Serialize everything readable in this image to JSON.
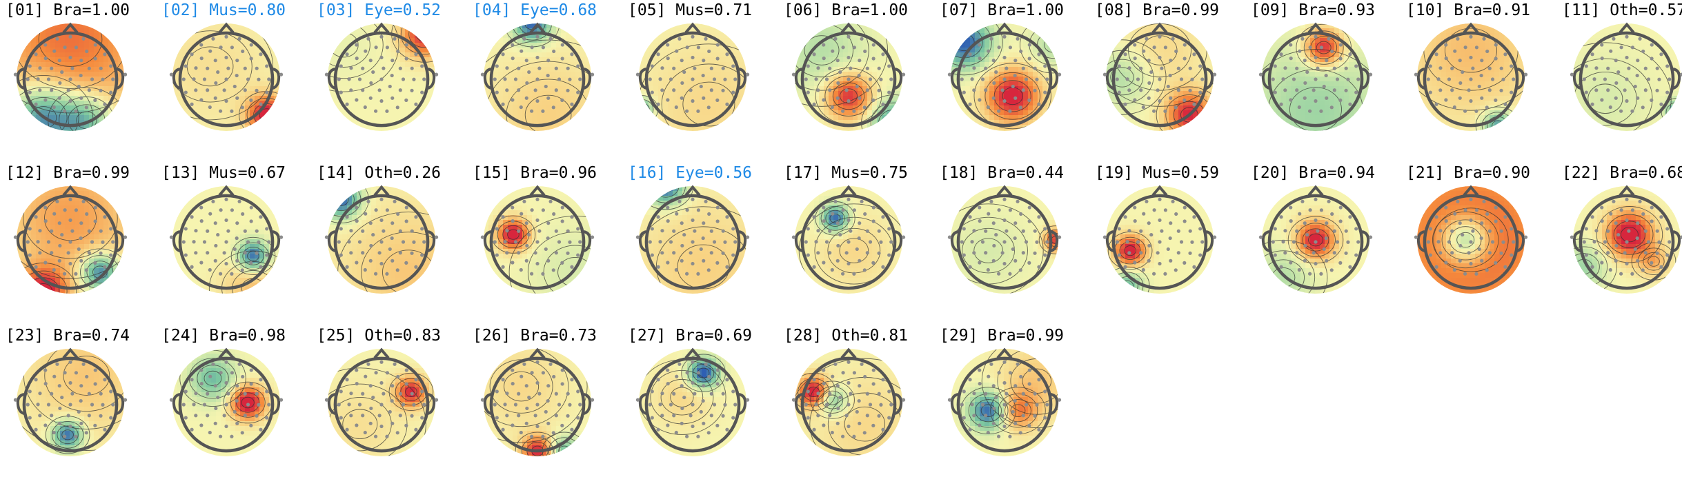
{
  "figure": {
    "components": [
      {
        "index": "01",
        "label": "Bra",
        "score": "1.00",
        "flagged": false,
        "pattern": "1.00 wide warm anterior, cold posterior band"
      },
      {
        "index": "02",
        "label": "Mus",
        "score": "0.80",
        "flagged": true
      },
      {
        "index": "03",
        "label": "Eye",
        "score": "0.52",
        "flagged": true
      },
      {
        "index": "04",
        "label": "Eye",
        "score": "0.68",
        "flagged": true
      },
      {
        "index": "05",
        "label": "Mus",
        "score": "0.71",
        "flagged": false
      },
      {
        "index": "06",
        "label": "Bra",
        "score": "1.00",
        "flagged": false
      },
      {
        "index": "07",
        "label": "Bra",
        "score": "1.00",
        "flagged": false
      },
      {
        "index": "08",
        "label": "Bra",
        "score": "0.99",
        "flagged": false
      },
      {
        "index": "09",
        "label": "Bra",
        "score": "0.93",
        "flagged": false
      },
      {
        "index": "10",
        "label": "Bra",
        "score": "0.91",
        "flagged": false
      },
      {
        "index": "11",
        "label": "Oth",
        "score": "0.57",
        "flagged": false
      },
      {
        "index": "12",
        "label": "Bra",
        "score": "0.99",
        "flagged": false
      },
      {
        "index": "13",
        "label": "Mus",
        "score": "0.67",
        "flagged": false
      },
      {
        "index": "14",
        "label": "Oth",
        "score": "0.26",
        "flagged": false
      },
      {
        "index": "15",
        "label": "Bra",
        "score": "0.96",
        "flagged": false
      },
      {
        "index": "16",
        "label": "Eye",
        "score": "0.56",
        "flagged": true
      },
      {
        "index": "17",
        "label": "Mus",
        "score": "0.75",
        "flagged": false
      },
      {
        "index": "18",
        "label": "Bra",
        "score": "0.44",
        "flagged": false
      },
      {
        "index": "19",
        "label": "Mus",
        "score": "0.59",
        "flagged": false
      },
      {
        "index": "20",
        "label": "Bra",
        "score": "0.94",
        "flagged": false
      },
      {
        "index": "21",
        "label": "Bra",
        "score": "0.90",
        "flagged": false
      },
      {
        "index": "22",
        "label": "Bra",
        "score": "0.68",
        "flagged": false
      },
      {
        "index": "23",
        "label": "Bra",
        "score": "0.74",
        "flagged": false
      },
      {
        "index": "24",
        "label": "Bra",
        "score": "0.98",
        "flagged": false
      },
      {
        "index": "25",
        "label": "Oth",
        "score": "0.83",
        "flagged": false
      },
      {
        "index": "26",
        "label": "Bra",
        "score": "0.73",
        "flagged": false
      },
      {
        "index": "27",
        "label": "Bra",
        "score": "0.69",
        "flagged": false
      },
      {
        "index": "28",
        "label": "Oth",
        "score": "0.81",
        "flagged": false
      },
      {
        "index": "29",
        "label": "Bra",
        "score": "0.99",
        "flagged": false
      }
    ],
    "colors": {
      "flagged_text": "#1f8ae6",
      "normal_text": "#000000",
      "head_outline": "#555555",
      "sensor": "#8c8c8c",
      "contour": "#333333",
      "neutral": "#f6f4b0",
      "hot": "#d7263d",
      "warm": "#f58a3c",
      "cool": "#7cc7a0",
      "cold": "#2f5fb3"
    }
  }
}
